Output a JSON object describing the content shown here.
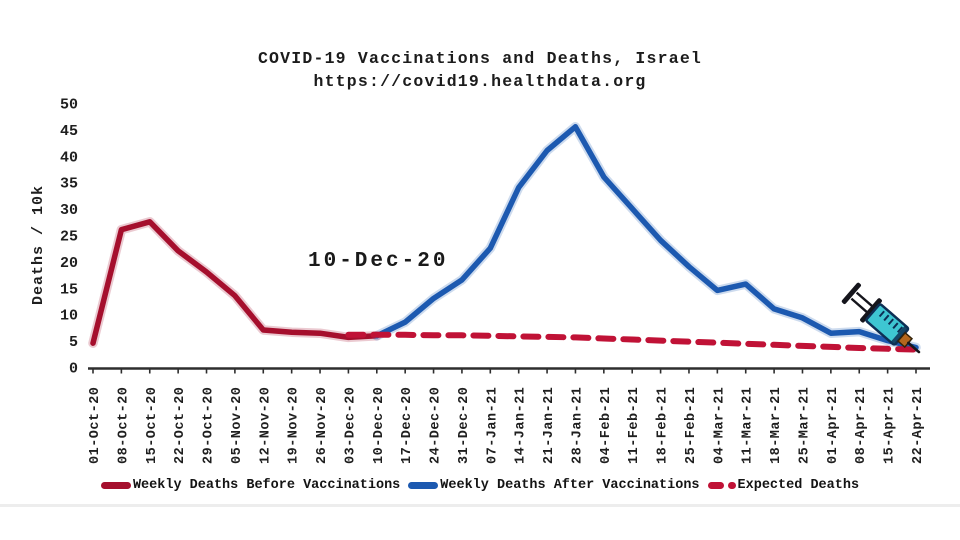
{
  "title": {
    "line1": "COVID-19 Vaccinations and Deaths, Israel",
    "line2": "https://covid19.healthdata.org"
  },
  "annotation": {
    "label": "10-Dec-20"
  },
  "y_axis": {
    "label": "Deaths / 10k",
    "ticks": [
      0,
      5,
      10,
      15,
      20,
      25,
      30,
      35,
      40,
      45,
      50
    ]
  },
  "legend": {
    "items": [
      {
        "label": "Weekly Deaths Before Vaccinations",
        "style": "solid",
        "color": "#a50f2d"
      },
      {
        "label": "Weekly Deaths After Vaccinations",
        "style": "solid",
        "color": "#1c59b0"
      },
      {
        "label": "Expected Deaths",
        "style": "dashed",
        "color": "#c01236"
      }
    ]
  },
  "icons": {
    "syringe": "syringe-icon"
  },
  "colors": {
    "axis": "#2e2e2e",
    "text": "#1c1c1c",
    "before": "#a50f2d",
    "after": "#1c59b0",
    "expected": "#c01236",
    "syringe_body": "#3ec6d2"
  },
  "chart_data": {
    "type": "line",
    "title": "COVID-19 Vaccinations and Deaths, Israel",
    "subtitle": "https://covid19.healthdata.org",
    "ylabel": "Deaths / 10k",
    "xlabel": "",
    "ylim": [
      0,
      50
    ],
    "grid": false,
    "legend_position": "bottom",
    "annotation": {
      "text": "10-Dec-20",
      "meaning": "vaccination start date"
    },
    "categories": [
      "01-Oct-20",
      "08-Oct-20",
      "15-Oct-20",
      "22-Oct-20",
      "29-Oct-20",
      "05-Nov-20",
      "12-Nov-20",
      "19-Nov-20",
      "26-Nov-20",
      "03-Dec-20",
      "10-Dec-20",
      "17-Dec-20",
      "24-Dec-20",
      "31-Dec-20",
      "07-Jan-21",
      "14-Jan-21",
      "21-Jan-21",
      "28-Jan-21",
      "04-Feb-21",
      "11-Feb-21",
      "18-Feb-21",
      "25-Feb-21",
      "04-Mar-21",
      "11-Mar-21",
      "18-Mar-21",
      "25-Mar-21",
      "01-Apr-21",
      "08-Apr-21",
      "15-Apr-21",
      "22-Apr-21"
    ],
    "series": [
      {
        "name": "Weekly Deaths Before Vaccinations",
        "color": "#a50f2d",
        "style": "solid",
        "start_index": 0,
        "values": [
          4.5,
          26,
          27.5,
          22,
          18,
          13.5,
          7,
          6.6,
          6.4,
          5.6,
          5.9
        ]
      },
      {
        "name": "Weekly Deaths After Vaccinations",
        "color": "#1c59b0",
        "style": "solid",
        "start_index": 10,
        "values": [
          5.9,
          8.5,
          13,
          16.5,
          22.5,
          34,
          41,
          45.5,
          36,
          30,
          24,
          19,
          14.5,
          15.7,
          11,
          9.3,
          6.4,
          6.7,
          5,
          3.7
        ]
      },
      {
        "name": "Expected Deaths",
        "color": "#c01236",
        "style": "dashed",
        "start_index": 9,
        "values": [
          6.1,
          6.1,
          6.1,
          6.0,
          6.0,
          5.9,
          5.8,
          5.7,
          5.6,
          5.4,
          5.2,
          5.0,
          4.8,
          4.6,
          4.4,
          4.2,
          4.0,
          3.8,
          3.6,
          3.45,
          3.3
        ]
      }
    ]
  }
}
